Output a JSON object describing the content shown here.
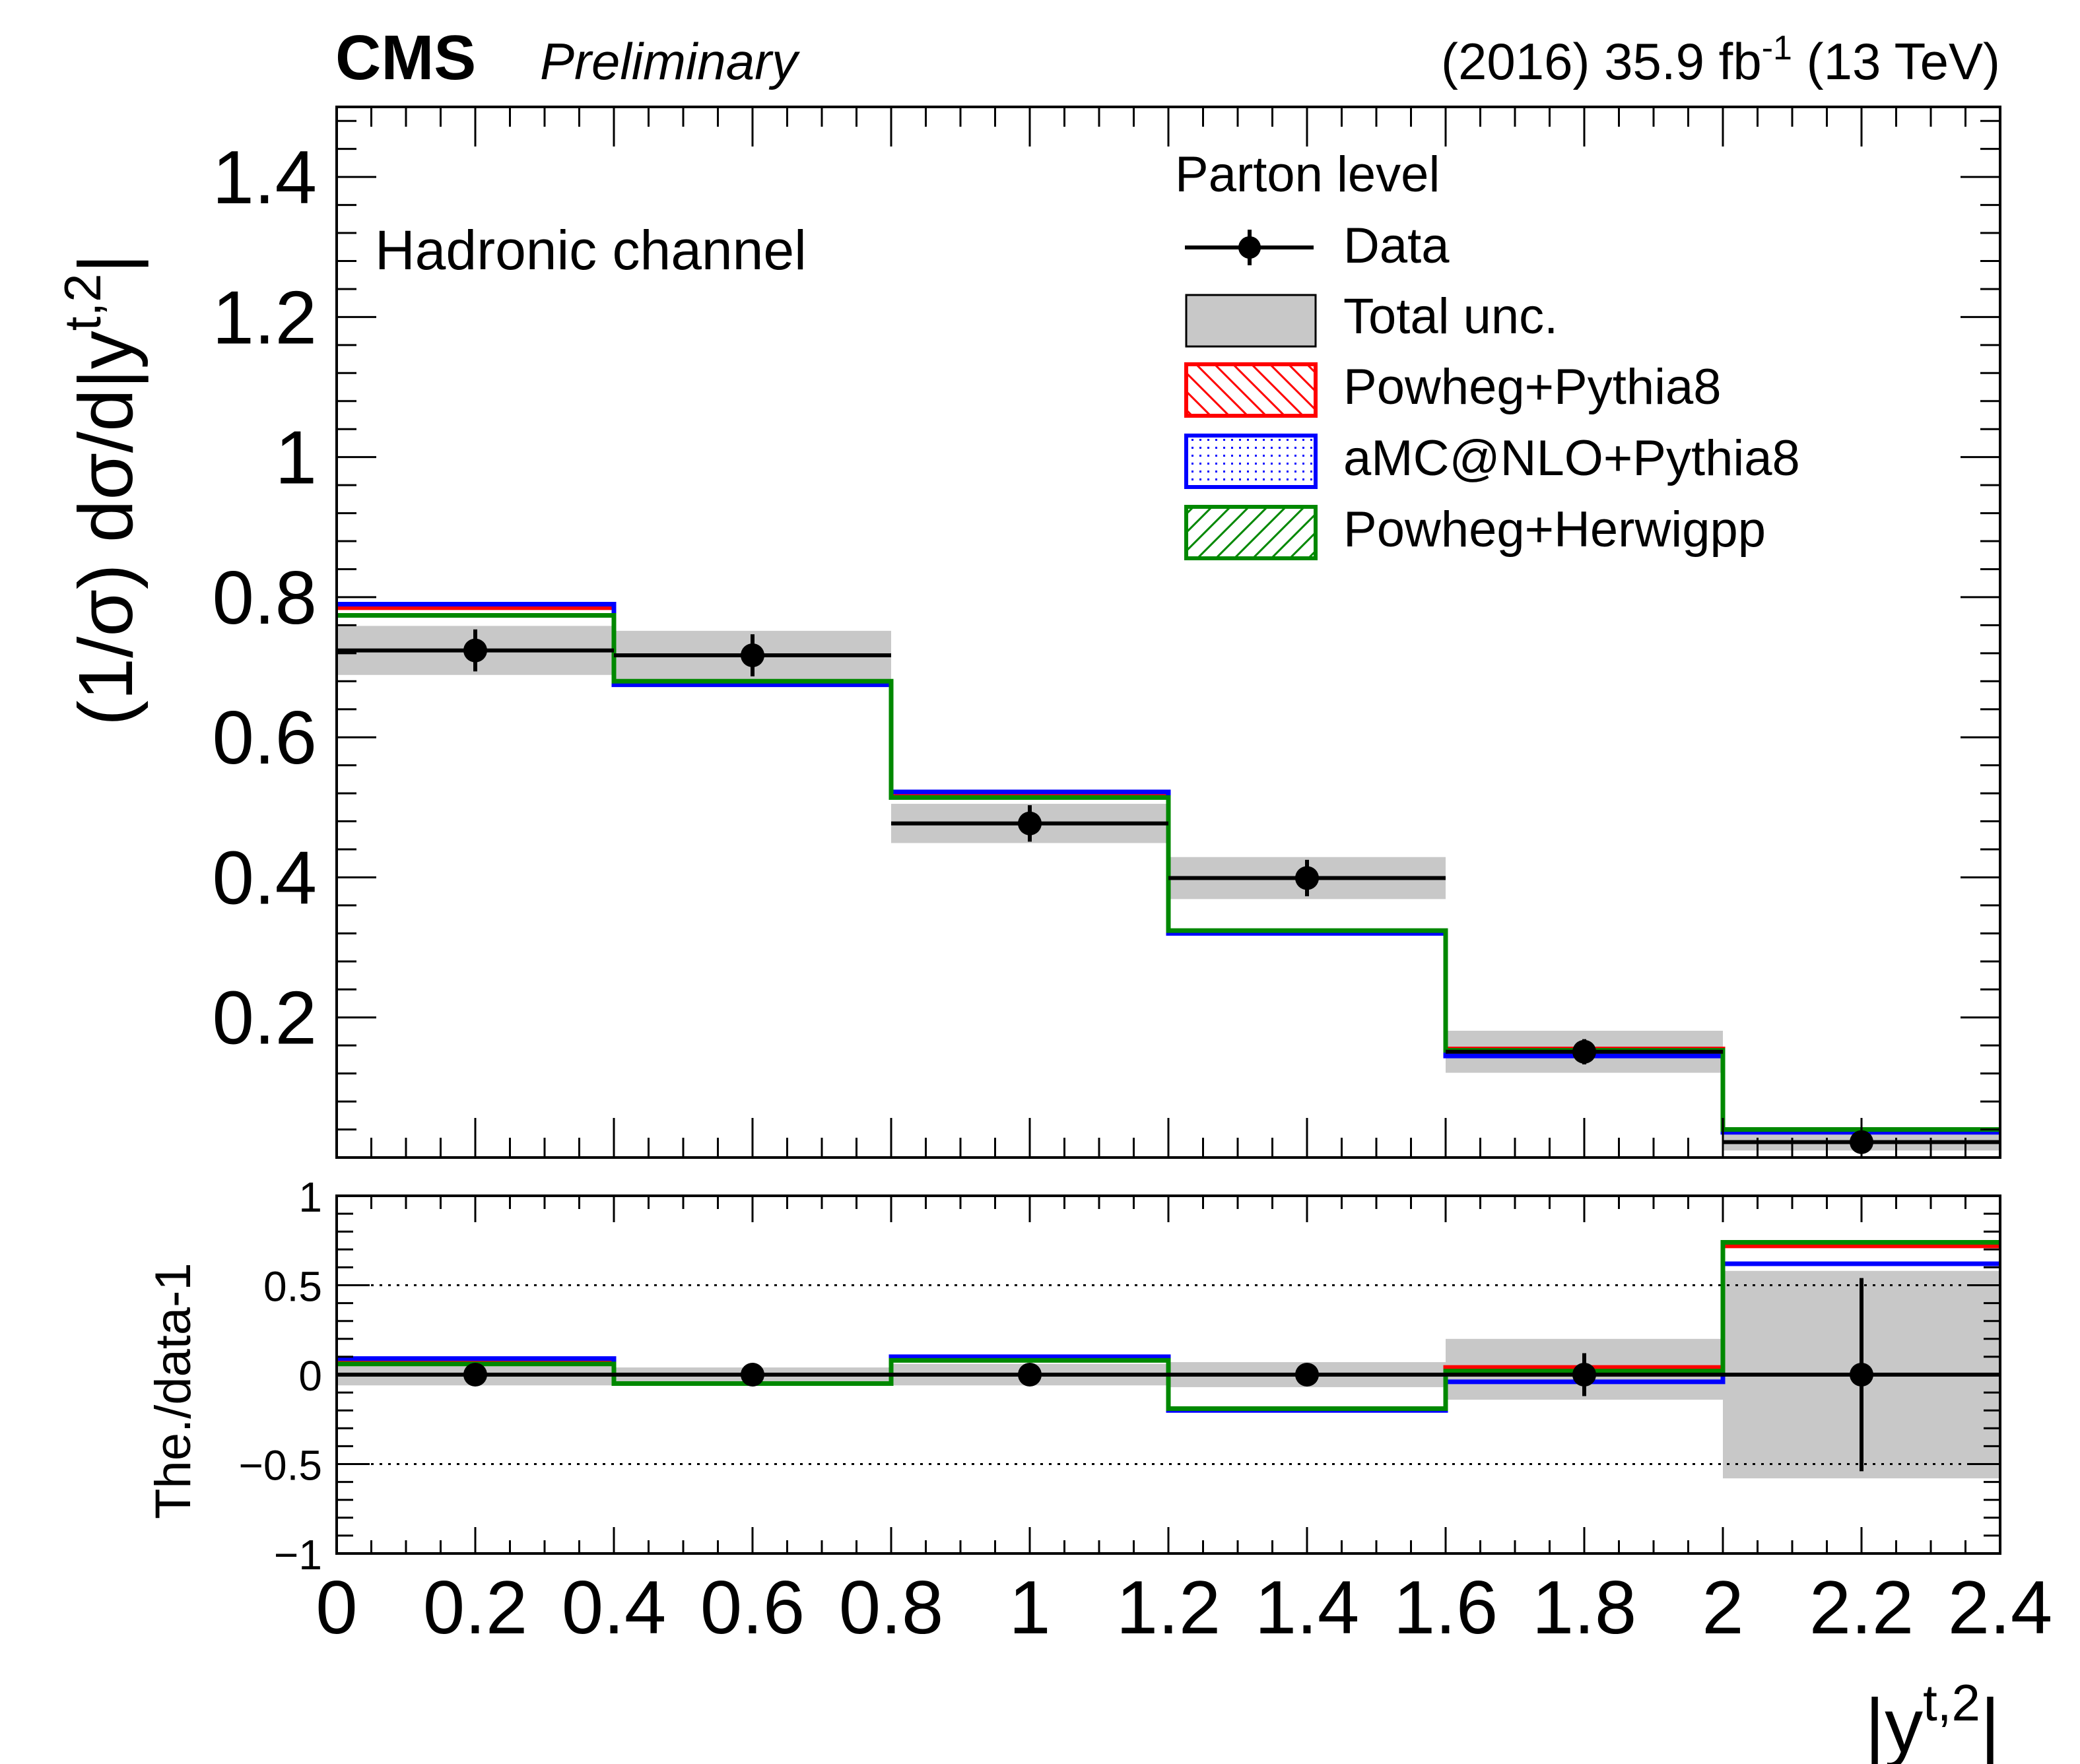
{
  "header": {
    "experiment": "CMS",
    "status": "Preliminary",
    "lumi_prefix": "(2016) 35.9 fb",
    "lumi_exp": "-1",
    "lumi_suffix": " (13 TeV)"
  },
  "annotations": {
    "channel": "Hadronic channel",
    "legend_header": "Parton level"
  },
  "colors": {
    "data": "#000000",
    "total_unc": "#c8c8c8",
    "powheg_pythia8": "#ff0000",
    "amcatnlo_pythia8": "#0000ff",
    "powheg_herwigpp": "#008800"
  },
  "chart_data": [
    {
      "type": "histogram",
      "panel": "main",
      "title": "",
      "ylabel": "(1/σ) dσ/d|y^{t,2}|",
      "ylabel_main": "(1/σ) dσ/d|y",
      "ylabel_sup": "t,2",
      "ylabel_end": "|",
      "xlabel": "",
      "xlim": [
        0,
        2.4
      ],
      "ylim": [
        0,
        1.5
      ],
      "ytick_values": [
        0.2,
        0.4,
        0.6,
        0.8,
        1,
        1.2,
        1.4
      ],
      "ytick_labels": [
        "0.2",
        "0.4",
        "0.6",
        "0.8",
        "1",
        "1.2",
        "1.4"
      ],
      "bin_edges": [
        0,
        0.4,
        0.8,
        1.2,
        1.6,
        2.0,
        2.4
      ],
      "series": [
        {
          "name": "Data",
          "kind": "points",
          "values": [
            0.724,
            0.717,
            0.477,
            0.399,
            0.151,
            0.022
          ],
          "errors": [
            0.03,
            0.03,
            0.026,
            0.026,
            0.018,
            0.012
          ]
        },
        {
          "name": "Total unc.",
          "kind": "band",
          "center": [
            0.724,
            0.717,
            0.477,
            0.399,
            0.151,
            0.022
          ],
          "half_width": [
            0.035,
            0.035,
            0.028,
            0.03,
            0.03,
            0.012
          ]
        },
        {
          "name": "Powheg+Pythia8",
          "kind": "step",
          "values": [
            0.785,
            0.677,
            0.518,
            0.323,
            0.155,
            0.039
          ]
        },
        {
          "name": "aMC@NLO+Pythia8",
          "kind": "step",
          "values": [
            0.79,
            0.675,
            0.522,
            0.32,
            0.145,
            0.036
          ]
        },
        {
          "name": "Powheg+Herwigpp",
          "kind": "step",
          "values": [
            0.774,
            0.68,
            0.514,
            0.324,
            0.153,
            0.04
          ]
        }
      ],
      "legend": {
        "placement": "top-right",
        "entries": [
          "Data",
          "Total unc.",
          "Powheg+Pythia8",
          "aMC@NLO+Pythia8",
          "Powheg+Herwigpp"
        ]
      }
    },
    {
      "type": "histogram",
      "panel": "ratio",
      "ylabel": "The./data-1",
      "xlabel": "|y^{t,2}|",
      "xlabel_main": "|y",
      "xlabel_sup": "t,2",
      "xlabel_end": "|",
      "xlim": [
        0,
        2.4
      ],
      "ylim": [
        -1,
        1
      ],
      "ytick_values": [
        -1,
        -0.5,
        0,
        0.5,
        1
      ],
      "ytick_labels": [
        "−1",
        "−0.5",
        "0",
        "0.5",
        "1"
      ],
      "xtick_values": [
        0,
        0.2,
        0.4,
        0.6,
        0.8,
        1,
        1.2,
        1.4,
        1.6,
        1.8,
        2,
        2.2,
        2.4
      ],
      "xtick_labels": [
        "0",
        "0.2",
        "0.4",
        "0.6",
        "0.8",
        "1",
        "1.2",
        "1.4",
        "1.6",
        "1.8",
        "2",
        "2.2",
        "2.4"
      ],
      "reference_lines": [
        0.5,
        -0.5
      ],
      "bin_edges": [
        0,
        0.4,
        0.8,
        1.2,
        1.6,
        2.0,
        2.4
      ],
      "series": [
        {
          "name": "Data",
          "kind": "points",
          "values": [
            0,
            0,
            0,
            0,
            0,
            0
          ],
          "errors": [
            0.03,
            0.035,
            0.04,
            0.05,
            0.12,
            0.54
          ]
        },
        {
          "name": "Total unc.",
          "kind": "band",
          "lower": [
            -0.06,
            -0.06,
            -0.06,
            -0.07,
            -0.14,
            -0.58
          ],
          "upper": [
            0.06,
            0.04,
            0.06,
            0.07,
            0.2,
            0.58
          ]
        },
        {
          "name": "Powheg+Pythia8",
          "kind": "step",
          "values": [
            0.07,
            -0.05,
            0.09,
            -0.19,
            0.04,
            0.72
          ]
        },
        {
          "name": "aMC@NLO+Pythia8",
          "kind": "step",
          "values": [
            0.09,
            -0.05,
            0.1,
            -0.2,
            -0.04,
            0.62
          ]
        },
        {
          "name": "Powheg+Herwigpp",
          "kind": "step",
          "values": [
            0.06,
            -0.05,
            0.08,
            -0.19,
            0.02,
            0.74
          ]
        }
      ]
    }
  ]
}
